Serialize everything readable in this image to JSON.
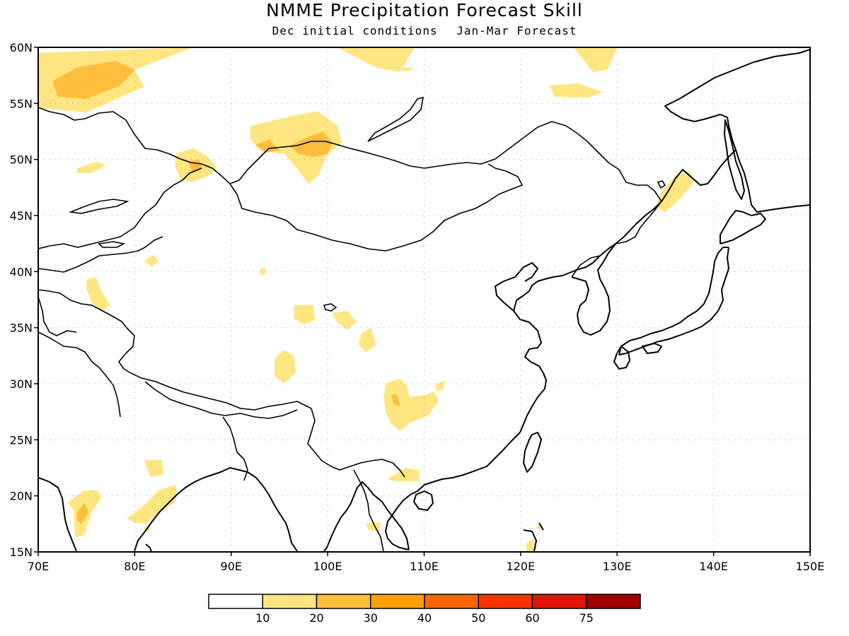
{
  "title": "NMME Precipitation Forecast Skill",
  "subtitle": {
    "left": "Dec initial conditions",
    "right": "Jan-Mar Forecast"
  },
  "map": {
    "lon_range": [
      70,
      150
    ],
    "lat_range": [
      15,
      60
    ],
    "lon_ticks": [
      {
        "value": 70,
        "label": "70E"
      },
      {
        "value": 80,
        "label": "80E"
      },
      {
        "value": 90,
        "label": "90E"
      },
      {
        "value": 100,
        "label": "100E"
      },
      {
        "value": 110,
        "label": "110E"
      },
      {
        "value": 120,
        "label": "120E"
      },
      {
        "value": 130,
        "label": "130E"
      },
      {
        "value": 140,
        "label": "140E"
      },
      {
        "value": 150,
        "label": "150E"
      }
    ],
    "lat_ticks": [
      {
        "value": 15,
        "label": "15N"
      },
      {
        "value": 20,
        "label": "20N"
      },
      {
        "value": 25,
        "label": "25N"
      },
      {
        "value": 30,
        "label": "30N"
      },
      {
        "value": 35,
        "label": "35N"
      },
      {
        "value": 40,
        "label": "40N"
      },
      {
        "value": 45,
        "label": "45N"
      },
      {
        "value": 50,
        "label": "50N"
      },
      {
        "value": 55,
        "label": "55N"
      },
      {
        "value": 60,
        "label": "60N"
      }
    ],
    "grid": "dotted"
  },
  "colorbar": {
    "colors": [
      "#ffffff",
      "#ffe680",
      "#ffbe3c",
      "#ffa000",
      "#ff6400",
      "#ff3200",
      "#e11400",
      "#a00000"
    ],
    "labels": [
      "10",
      "20",
      "30",
      "40",
      "50",
      "60",
      "75"
    ]
  },
  "skill_regions": [
    {
      "level": 1,
      "points": [
        [
          70,
          59.5
        ],
        [
          86,
          60
        ],
        [
          80,
          58
        ],
        [
          81,
          56.5
        ],
        [
          75,
          54.2
        ],
        [
          70,
          54.6
        ]
      ]
    },
    {
      "level": 2,
      "points": [
        [
          71.5,
          57
        ],
        [
          74,
          58.2
        ],
        [
          78,
          58.8
        ],
        [
          80,
          58
        ],
        [
          78.5,
          56.6
        ],
        [
          75,
          55.4
        ],
        [
          72,
          55.6
        ]
      ]
    },
    {
      "level": 1,
      "points": [
        [
          101,
          60
        ],
        [
          109,
          60
        ],
        [
          107.5,
          57.8
        ],
        [
          105,
          58.2
        ]
      ]
    },
    {
      "level": 1,
      "points": [
        [
          125.5,
          60
        ],
        [
          130,
          60
        ],
        [
          129,
          58
        ],
        [
          127.5,
          57.8
        ]
      ]
    },
    {
      "level": 1,
      "points": [
        [
          123,
          56.6
        ],
        [
          126,
          56.8
        ],
        [
          128.5,
          56
        ],
        [
          127,
          55.5
        ],
        [
          123.5,
          55.6
        ]
      ]
    },
    {
      "level": 1,
      "points": [
        [
          107.5,
          58.2
        ],
        [
          108.9,
          58.2
        ],
        [
          108.5,
          57.9
        ],
        [
          107.8,
          57.9
        ]
      ]
    },
    {
      "level": 1,
      "points": [
        [
          92,
          53
        ],
        [
          94.5,
          53.5
        ],
        [
          97,
          54
        ],
        [
          99,
          54.3
        ],
        [
          101,
          53
        ],
        [
          101.5,
          51.5
        ],
        [
          100,
          50.5
        ],
        [
          99,
          48.5
        ],
        [
          98,
          47.8
        ],
        [
          97,
          49
        ],
        [
          95.5,
          50.5
        ],
        [
          93,
          50.8
        ],
        [
          92,
          51.8
        ]
      ]
    },
    {
      "level": 2,
      "points": [
        [
          92.5,
          51.3
        ],
        [
          94,
          51.8
        ],
        [
          95,
          50.8
        ],
        [
          93.5,
          50.6
        ]
      ]
    },
    {
      "level": 2,
      "points": [
        [
          96,
          51.2
        ],
        [
          98,
          52
        ],
        [
          99.5,
          52.5
        ],
        [
          100.5,
          51.5
        ],
        [
          100,
          50.5
        ],
        [
          98.5,
          50.2
        ],
        [
          97,
          50.5
        ]
      ]
    },
    {
      "level": 1,
      "points": [
        [
          84.3,
          50.5
        ],
        [
          86,
          51
        ],
        [
          87.5,
          50.3
        ],
        [
          88.5,
          49.3
        ],
        [
          87.8,
          48.6
        ],
        [
          86,
          48
        ],
        [
          84.8,
          48.2
        ],
        [
          84.2,
          49.3
        ]
      ]
    },
    {
      "level": 2,
      "points": [
        [
          85.5,
          49.8
        ],
        [
          86.7,
          50
        ],
        [
          87,
          49.2
        ],
        [
          86,
          48.8
        ]
      ]
    },
    {
      "level": 1,
      "points": [
        [
          74,
          49.2
        ],
        [
          76,
          49.8
        ],
        [
          77,
          49.5
        ],
        [
          75.5,
          48.8
        ],
        [
          74,
          48.8
        ]
      ]
    },
    {
      "level": 1,
      "points": [
        [
          134.5,
          47
        ],
        [
          136,
          48.5
        ],
        [
          137.5,
          49
        ],
        [
          138,
          48
        ],
        [
          136.5,
          46.5
        ],
        [
          135,
          45.3
        ],
        [
          134,
          45.8
        ]
      ]
    },
    {
      "level": 1,
      "points": [
        [
          81,
          41
        ],
        [
          82,
          41.5
        ],
        [
          82.5,
          40.9
        ],
        [
          81.7,
          40.4
        ]
      ]
    },
    {
      "level": 1,
      "points": [
        [
          93,
          40.3
        ],
        [
          93.6,
          40.3
        ],
        [
          93.5,
          39.7
        ],
        [
          93,
          39.8
        ]
      ]
    },
    {
      "level": 1,
      "points": [
        [
          75,
          39.3
        ],
        [
          76,
          39.5
        ],
        [
          76.5,
          38.3
        ],
        [
          77.5,
          37
        ],
        [
          76.5,
          36.5
        ],
        [
          75.5,
          37.3
        ],
        [
          75,
          38.5
        ]
      ]
    },
    {
      "level": 1,
      "points": [
        [
          96.5,
          37
        ],
        [
          98.5,
          37
        ],
        [
          98.7,
          35.7
        ],
        [
          97.5,
          35.3
        ],
        [
          96.5,
          35.8
        ]
      ]
    },
    {
      "level": 1,
      "points": [
        [
          100.5,
          36.3
        ],
        [
          102,
          36.5
        ],
        [
          103,
          35.5
        ],
        [
          102,
          34.8
        ],
        [
          101,
          35.5
        ]
      ]
    },
    {
      "level": 1,
      "points": [
        [
          103.5,
          34.5
        ],
        [
          104.5,
          35
        ],
        [
          105,
          33.5
        ],
        [
          104,
          32.8
        ],
        [
          103.2,
          33.5
        ]
      ]
    },
    {
      "level": 1,
      "points": [
        [
          94.5,
          32.3
        ],
        [
          95.5,
          33
        ],
        [
          96.5,
          32.5
        ],
        [
          96.7,
          31
        ],
        [
          95.5,
          30
        ],
        [
          94.5,
          30.7
        ]
      ]
    },
    {
      "level": 1,
      "points": [
        [
          106,
          30
        ],
        [
          107.5,
          30.5
        ],
        [
          108.2,
          29.8
        ],
        [
          108.5,
          28.8
        ],
        [
          110,
          29
        ],
        [
          111,
          29.3
        ],
        [
          111.5,
          28.5
        ],
        [
          110.5,
          27.2
        ],
        [
          108.5,
          26.5
        ],
        [
          107.5,
          25.8
        ],
        [
          106.5,
          26.5
        ],
        [
          106,
          27.5
        ],
        [
          105.8,
          28.8
        ]
      ]
    },
    {
      "level": 2,
      "points": [
        [
          106.6,
          29
        ],
        [
          107.2,
          29
        ],
        [
          107.5,
          28
        ],
        [
          106.8,
          28.2
        ]
      ]
    },
    {
      "level": 1,
      "points": [
        [
          111.2,
          30
        ],
        [
          112.2,
          30.3
        ],
        [
          112,
          29.5
        ],
        [
          111.3,
          29.3
        ]
      ]
    },
    {
      "level": 1,
      "points": [
        [
          106.2,
          21.5
        ],
        [
          108,
          22.5
        ],
        [
          109.5,
          22.3
        ],
        [
          109.5,
          21.3
        ],
        [
          107,
          21.3
        ]
      ]
    },
    {
      "level": 1,
      "points": [
        [
          81,
          23.2
        ],
        [
          82.8,
          23.2
        ],
        [
          83,
          21.9
        ],
        [
          81.6,
          21.7
        ]
      ]
    },
    {
      "level": 1,
      "points": [
        [
          73,
          19.4
        ],
        [
          74.8,
          20.5
        ],
        [
          76.2,
          20.5
        ],
        [
          76.5,
          19.8
        ],
        [
          75.5,
          18.5
        ],
        [
          74.8,
          16.5
        ],
        [
          73.8,
          16.3
        ],
        [
          73.7,
          18.7
        ]
      ]
    },
    {
      "level": 2,
      "points": [
        [
          74,
          18.5
        ],
        [
          74.8,
          19.4
        ],
        [
          75.2,
          18.5
        ],
        [
          74.5,
          17.5
        ],
        [
          74,
          17.8
        ]
      ]
    },
    {
      "level": 1,
      "points": [
        [
          79.2,
          18
        ],
        [
          80.5,
          18.8
        ],
        [
          81.5,
          19.6
        ],
        [
          82.5,
          20.5
        ],
        [
          84.3,
          21
        ],
        [
          84.3,
          19.5
        ],
        [
          82.5,
          18.5
        ],
        [
          81.2,
          17.5
        ],
        [
          80,
          17.6
        ]
      ]
    },
    {
      "level": 1,
      "points": [
        [
          80.8,
          17.2
        ],
        [
          81.6,
          17.2
        ],
        [
          81.4,
          16.7
        ]
      ]
    },
    {
      "level": 1,
      "points": [
        [
          104,
          17.5
        ],
        [
          105.5,
          17.7
        ],
        [
          105.3,
          16.8
        ],
        [
          104.2,
          17
        ]
      ]
    },
    {
      "level": 1,
      "points": [
        [
          120.6,
          15.8
        ],
        [
          121.5,
          16.2
        ],
        [
          121.3,
          15
        ],
        [
          120.6,
          15
        ]
      ]
    },
    {
      "level": 1,
      "points": [
        [
          121.6,
          17.3
        ],
        [
          122.2,
          17.4
        ],
        [
          122,
          16.9
        ]
      ]
    }
  ]
}
